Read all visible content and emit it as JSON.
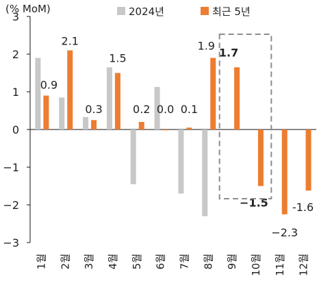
{
  "chart_data": {
    "type": "bar",
    "ylabel": "(% MoM)",
    "ylim": [
      -3,
      3
    ],
    "yticks": [
      3,
      2,
      1,
      0,
      -1,
      -2,
      -3
    ],
    "ytick_labels": [
      "3",
      "2",
      "1",
      "0",
      "−1",
      "−2",
      "−3"
    ],
    "categories": [
      "1월",
      "2월",
      "3월",
      "4월",
      "5월",
      "6월",
      "7월",
      "8월",
      "9월",
      "10월",
      "11월",
      "12월"
    ],
    "legend_position": "top",
    "series": [
      {
        "name": "2024년",
        "color": "#c8c8c8",
        "values": [
          1.9,
          0.85,
          0.33,
          1.65,
          -1.45,
          1.13,
          -1.7,
          -2.3,
          null,
          null,
          null,
          null
        ]
      },
      {
        "name": "최근 5년",
        "color": "#ed7d31",
        "values": [
          0.9,
          2.1,
          0.25,
          1.5,
          0.2,
          0.0,
          0.05,
          1.9,
          1.65,
          -1.5,
          -2.25,
          -1.62
        ],
        "labels": [
          "0.9",
          "2.1",
          "0.3",
          "1.5",
          "0.2",
          "0.0",
          "0.1",
          "1.9",
          "1.7",
          "−1.5",
          "−2.3",
          "-1.6"
        ],
        "bold_labels": [
          8,
          9
        ]
      }
    ],
    "highlight_box": {
      "from_category": 8,
      "to_category": 9,
      "style": "dashed"
    },
    "grid": false
  }
}
